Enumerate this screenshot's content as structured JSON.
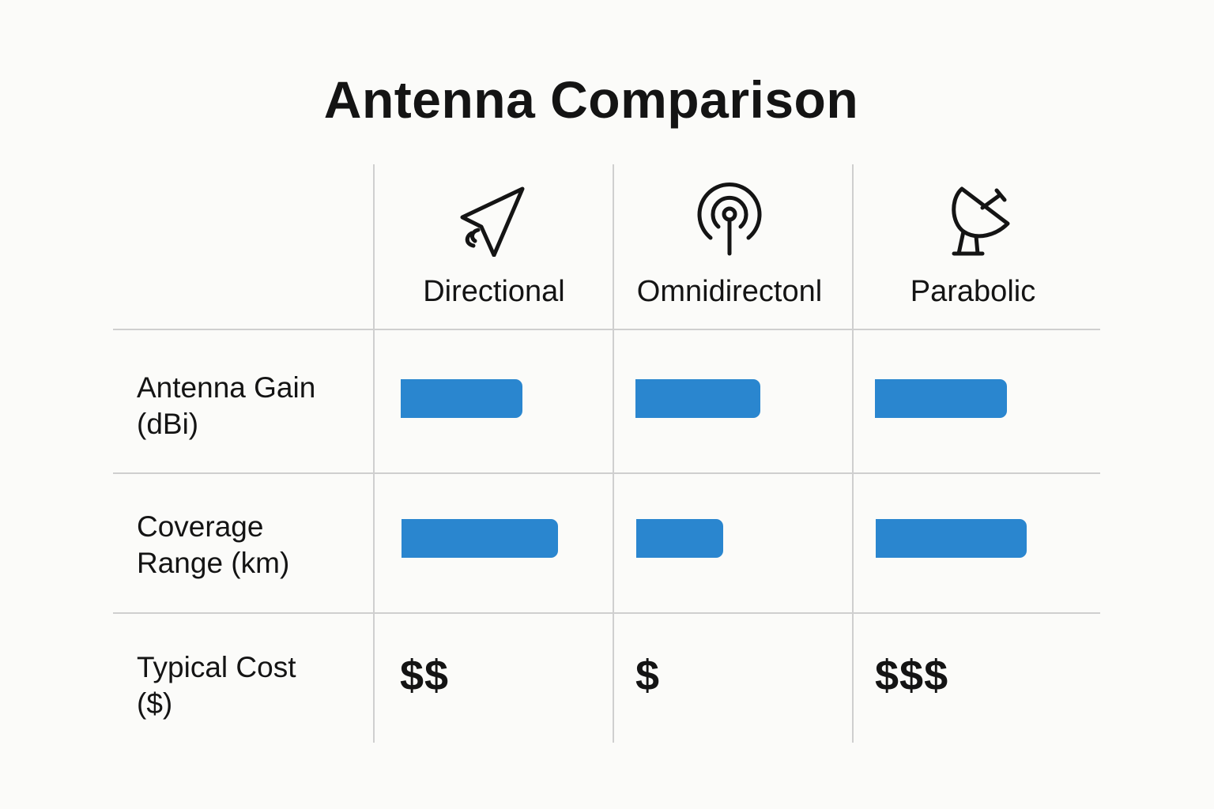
{
  "title": "Antenna Comparison",
  "columns": [
    {
      "label": "Directional",
      "icon": "directional-antenna-icon"
    },
    {
      "label": "Omnidirectonl",
      "icon": "omnidirectional-antenna-icon"
    },
    {
      "label": "Parabolic",
      "icon": "parabolic-dish-icon"
    }
  ],
  "rows": [
    {
      "label": "Antenna Gain\n(dBi)",
      "bar_fractions": [
        0.7,
        0.72,
        0.76
      ]
    },
    {
      "label": "Coverage\nRange (km)",
      "bar_fractions": [
        0.9,
        0.5,
        0.87
      ]
    },
    {
      "label": "Typical Cost\n($)",
      "values": [
        "$$",
        "$",
        "$$$"
      ]
    }
  ],
  "colors": {
    "bar": "#2a86cf",
    "grid": "#cfcfcf",
    "background": "#fbfbf9",
    "text": "#141414"
  }
}
